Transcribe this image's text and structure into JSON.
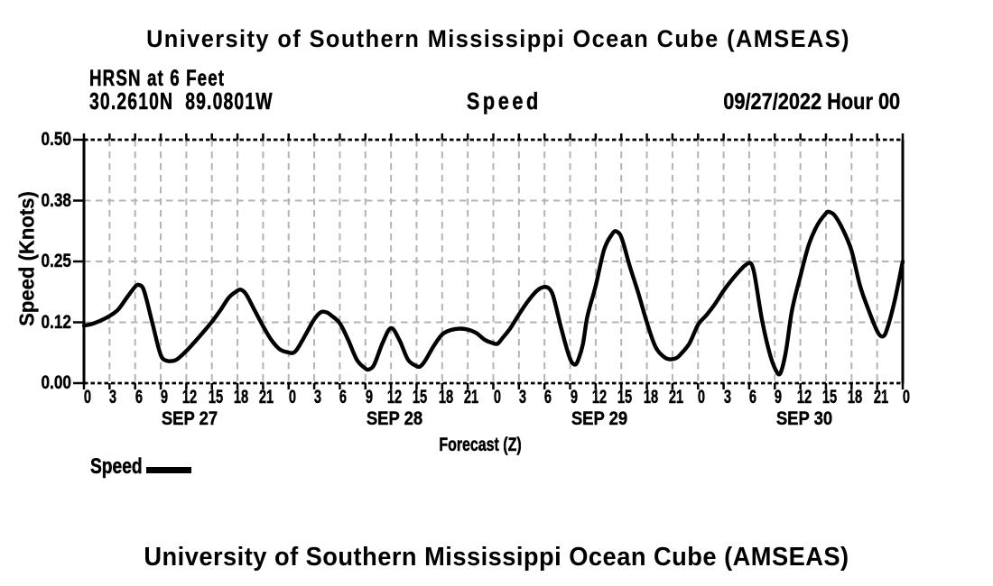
{
  "page": {
    "title_top": "University of Southern Mississippi Ocean Cube (AMSEAS)",
    "title_bottom": "University of Southern Mississippi Ocean Cube (AMSEAS)"
  },
  "header": {
    "station": "HRSN at 6 Feet",
    "coordinates": "30.2610N  89.0801W",
    "plot_label": "Speed",
    "datetime": "09/27/2022 Hour 00"
  },
  "chart_data": {
    "type": "line",
    "title": "Speed",
    "ylabel": "Speed (Knots)",
    "xlabel": "Forecast (Z)",
    "ylim": [
      0,
      0.5
    ],
    "x_hours_span": 96,
    "hours_per_tick": 3,
    "y_ticks": [
      {
        "label": "0.00",
        "value": 0
      },
      {
        "label": "0.12",
        "value": 0.125
      },
      {
        "label": "0.25",
        "value": 0.25
      },
      {
        "label": "0.38",
        "value": 0.375
      },
      {
        "label": "0.50",
        "value": 0.5
      }
    ],
    "x_tick_labels": [
      "0",
      "3",
      "6",
      "9",
      "12",
      "15",
      "18",
      "21",
      "0",
      "3",
      "6",
      "9",
      "12",
      "15",
      "18",
      "21",
      "0",
      "3",
      "6",
      "9",
      "12",
      "15",
      "18",
      "21",
      "0",
      "3",
      "6",
      "9",
      "12",
      "15",
      "18",
      "21",
      "0"
    ],
    "day_labels": [
      {
        "label": "SEP 27",
        "center_hour": 12
      },
      {
        "label": "SEP 28",
        "center_hour": 36
      },
      {
        "label": "SEP 29",
        "center_hour": 60
      },
      {
        "label": "SEP 30",
        "center_hour": 84
      }
    ],
    "legend": {
      "label": "Speed",
      "position": "bottom-left"
    },
    "grid": "dashed",
    "series": [
      {
        "name": "Speed",
        "color": "#000000",
        "points": [
          [
            0,
            0.118
          ],
          [
            1,
            0.122
          ],
          [
            2,
            0.129
          ],
          [
            3,
            0.138
          ],
          [
            4,
            0.151
          ],
          [
            5,
            0.175
          ],
          [
            6,
            0.198
          ],
          [
            6.4,
            0.202
          ],
          [
            7,
            0.192
          ],
          [
            8,
            0.125
          ],
          [
            9,
            0.058
          ],
          [
            9.7,
            0.046
          ],
          [
            10.5,
            0.046
          ],
          [
            11,
            0.05
          ],
          [
            12,
            0.066
          ],
          [
            13,
            0.085
          ],
          [
            14,
            0.105
          ],
          [
            15,
            0.126
          ],
          [
            16,
            0.15
          ],
          [
            17,
            0.176
          ],
          [
            18,
            0.19
          ],
          [
            18.4,
            0.192
          ],
          [
            19,
            0.183
          ],
          [
            20,
            0.15
          ],
          [
            21,
            0.117
          ],
          [
            22,
            0.088
          ],
          [
            23,
            0.069
          ],
          [
            24,
            0.063
          ],
          [
            24.5,
            0.062
          ],
          [
            25,
            0.07
          ],
          [
            26,
            0.1
          ],
          [
            27,
            0.131
          ],
          [
            27.8,
            0.146
          ],
          [
            28.5,
            0.145
          ],
          [
            29,
            0.139
          ],
          [
            30,
            0.123
          ],
          [
            31,
            0.088
          ],
          [
            32,
            0.048
          ],
          [
            33,
            0.03
          ],
          [
            33.4,
            0.028
          ],
          [
            34,
            0.037
          ],
          [
            35,
            0.082
          ],
          [
            36,
            0.113
          ],
          [
            37,
            0.088
          ],
          [
            38,
            0.048
          ],
          [
            39,
            0.035
          ],
          [
            39.4,
            0.034
          ],
          [
            40,
            0.046
          ],
          [
            41,
            0.076
          ],
          [
            42,
            0.1
          ],
          [
            43,
            0.109
          ],
          [
            44,
            0.112
          ],
          [
            45,
            0.11
          ],
          [
            46,
            0.103
          ],
          [
            47,
            0.089
          ],
          [
            48,
            0.082
          ],
          [
            48.5,
            0.081
          ],
          [
            49,
            0.091
          ],
          [
            50,
            0.113
          ],
          [
            51,
            0.141
          ],
          [
            52,
            0.167
          ],
          [
            53,
            0.188
          ],
          [
            53.8,
            0.197
          ],
          [
            54.5,
            0.195
          ],
          [
            55,
            0.18
          ],
          [
            56,
            0.11
          ],
          [
            57,
            0.05
          ],
          [
            57.6,
            0.038
          ],
          [
            58,
            0.05
          ],
          [
            58.5,
            0.08
          ],
          [
            59,
            0.135
          ],
          [
            60,
            0.2
          ],
          [
            61,
            0.275
          ],
          [
            62,
            0.308
          ],
          [
            62.4,
            0.312
          ],
          [
            63,
            0.3
          ],
          [
            64,
            0.24
          ],
          [
            65,
            0.185
          ],
          [
            66,
            0.125
          ],
          [
            67,
            0.075
          ],
          [
            68,
            0.054
          ],
          [
            68.7,
            0.049
          ],
          [
            69.5,
            0.052
          ],
          [
            70,
            0.06
          ],
          [
            71,
            0.082
          ],
          [
            72,
            0.12
          ],
          [
            73,
            0.14
          ],
          [
            74,
            0.163
          ],
          [
            75,
            0.19
          ],
          [
            76,
            0.213
          ],
          [
            77,
            0.233
          ],
          [
            77.6,
            0.243
          ],
          [
            78.2,
            0.246
          ],
          [
            78.6,
            0.225
          ],
          [
            79.5,
            0.13
          ],
          [
            80.5,
            0.055
          ],
          [
            81.3,
            0.021
          ],
          [
            81.7,
            0.022
          ],
          [
            82.3,
            0.065
          ],
          [
            83,
            0.148
          ],
          [
            84,
            0.22
          ],
          [
            85,
            0.285
          ],
          [
            86,
            0.325
          ],
          [
            87,
            0.349
          ],
          [
            87.3,
            0.352
          ],
          [
            88,
            0.345
          ],
          [
            89,
            0.315
          ],
          [
            90,
            0.272
          ],
          [
            91,
            0.2
          ],
          [
            92,
            0.15
          ],
          [
            93,
            0.107
          ],
          [
            93.5,
            0.096
          ],
          [
            94,
            0.103
          ],
          [
            95,
            0.165
          ],
          [
            96,
            0.25
          ]
        ]
      }
    ]
  },
  "colors": {
    "text": "#000000",
    "grid": "#b4b4b4",
    "axis": "#000000",
    "line": "#000000",
    "background": "#ffffff"
  }
}
